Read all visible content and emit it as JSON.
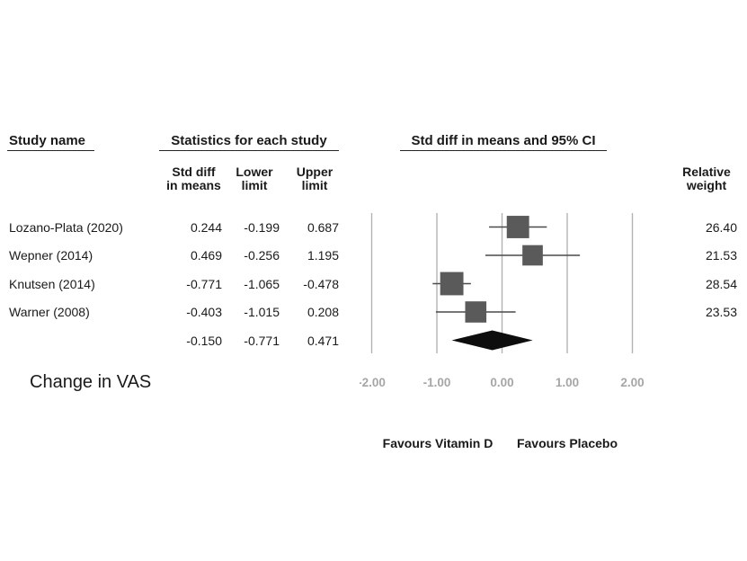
{
  "figure": {
    "outcome_label": "Change in VAS",
    "headers": {
      "study": "Study name",
      "statistics": "Statistics for each study",
      "plot": "Std diff in means and 95% CI"
    },
    "columns": {
      "std_diff": [
        "Std diff",
        "in means"
      ],
      "lower": [
        "Lower",
        "limit"
      ],
      "upper": [
        "Upper",
        "limit"
      ],
      "weight": [
        "Relative",
        "weight"
      ]
    },
    "favours_left": "Favours Vitamin D",
    "favours_right": "Favours Placebo"
  },
  "colors": {
    "square": "#5a5a5a",
    "ci_line": "#4a4a4a",
    "gridline": "#b3b3b3",
    "diamond": "#0d0d0d",
    "axis_text": "#a6a6a6",
    "text": "#1a1a1a"
  },
  "chart_data": {
    "type": "scatter",
    "subtype": "forest-plot",
    "title": "Std diff in means and 95% CI",
    "outcome": "Change in VAS",
    "effect_measure": "Std diff in means",
    "xticks": [
      -2,
      -1,
      0,
      1,
      2
    ],
    "xtick_labels": [
      "-2.00",
      "-1.00",
      "0.00",
      "1.00",
      "2.00"
    ],
    "xlim": [
      -2.19,
      2.38
    ],
    "grid": "vertical-gridlines",
    "legend": "none",
    "xlabel_left": "Favours Vitamin D",
    "xlabel_right": "Favours Placebo",
    "studies": [
      {
        "name": "Lozano-Plata (2020)",
        "std_diff": 0.244,
        "lower": -0.199,
        "upper": 0.687,
        "relative_weight": 26.4,
        "display": {
          "std_diff": "0.244",
          "lower": "-0.199",
          "upper": "0.687",
          "weight": "26.40"
        }
      },
      {
        "name": "Wepner (2014)",
        "std_diff": 0.469,
        "lower": -0.256,
        "upper": 1.195,
        "relative_weight": 21.53,
        "display": {
          "std_diff": "0.469",
          "lower": "-0.256",
          "upper": "1.195",
          "weight": "21.53"
        }
      },
      {
        "name": "Knutsen (2014)",
        "std_diff": -0.771,
        "lower": -1.065,
        "upper": -0.478,
        "relative_weight": 28.54,
        "display": {
          "std_diff": "-0.771",
          "lower": "-1.065",
          "upper": "-0.478",
          "weight": "28.54"
        }
      },
      {
        "name": "Warner (2008)",
        "std_diff": -0.403,
        "lower": -1.015,
        "upper": 0.208,
        "relative_weight": 23.53,
        "display": {
          "std_diff": "-0.403",
          "lower": "-1.015",
          "upper": "0.208",
          "weight": "23.53"
        }
      }
    ],
    "pooled": {
      "std_diff": -0.15,
      "lower": -0.771,
      "upper": 0.471,
      "display": {
        "std_diff": "-0.150",
        "lower": "-0.771",
        "upper": "0.471"
      }
    }
  }
}
